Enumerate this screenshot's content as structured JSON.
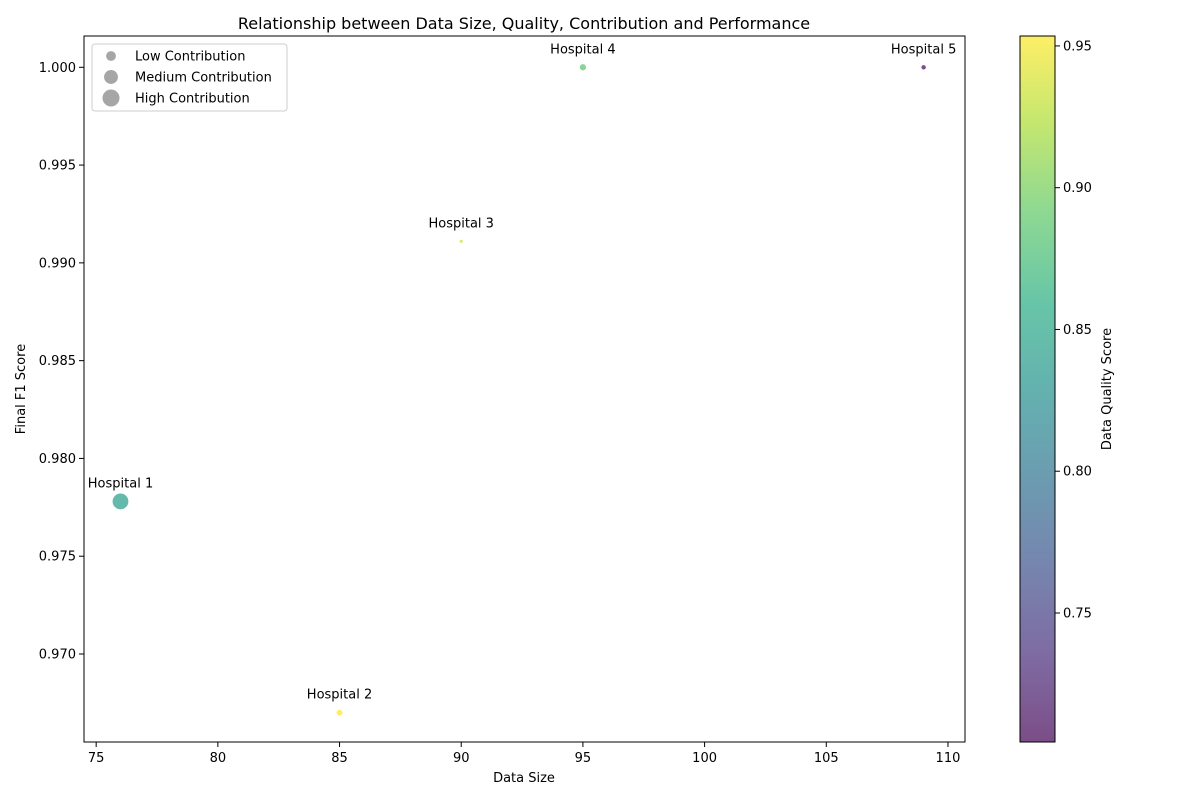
{
  "chart_data": {
    "type": "scatter",
    "title": "Relationship between Data Size, Quality, Contribution and Performance",
    "xlabel": "Data Size",
    "ylabel": "Final F1 Score",
    "xlim": [
      74.5,
      110.7
    ],
    "ylim": [
      0.9655,
      1.0016
    ],
    "xticks": [
      75,
      80,
      85,
      90,
      95,
      100,
      105,
      110
    ],
    "yticks": [
      0.97,
      0.975,
      0.98,
      0.985,
      0.99,
      0.995,
      1.0
    ],
    "xtick_labels": [
      "75",
      "80",
      "85",
      "90",
      "95",
      "100",
      "105",
      "110"
    ],
    "ytick_labels": [
      "0.970",
      "0.975",
      "0.980",
      "0.985",
      "0.990",
      "0.995",
      "1.000"
    ],
    "color_scale": "viridis",
    "colorbar": {
      "label": "Data Quality Score",
      "range": [
        0.7045,
        0.9535
      ],
      "ticks": [
        0.75,
        0.8,
        0.85,
        0.9,
        0.95
      ],
      "tick_labels": [
        "0.75",
        "0.80",
        "0.85",
        "0.90",
        "0.95"
      ]
    },
    "grid": false,
    "legend": {
      "placement": "upper-left",
      "entries": [
        {
          "label": "Low Contribution",
          "size": 50
        },
        {
          "label": "Medium Contribution",
          "size": 100
        },
        {
          "label": "High Contribution",
          "size": 150
        }
      ]
    },
    "points": [
      {
        "label": "Hospital 1",
        "x": 76,
        "y": 0.9778,
        "quality": 0.84,
        "contribution": 130
      },
      {
        "label": "Hospital 2",
        "x": 85,
        "y": 0.967,
        "quality": 0.953,
        "contribution": 18
      },
      {
        "label": "Hospital 3",
        "x": 90,
        "y": 0.9911,
        "quality": 0.935,
        "contribution": 5
      },
      {
        "label": "Hospital 4",
        "x": 95,
        "y": 1.0,
        "quality": 0.885,
        "contribution": 20
      },
      {
        "label": "Hospital 5",
        "x": 109,
        "y": 1.0,
        "quality": 0.705,
        "contribution": 10
      }
    ]
  }
}
